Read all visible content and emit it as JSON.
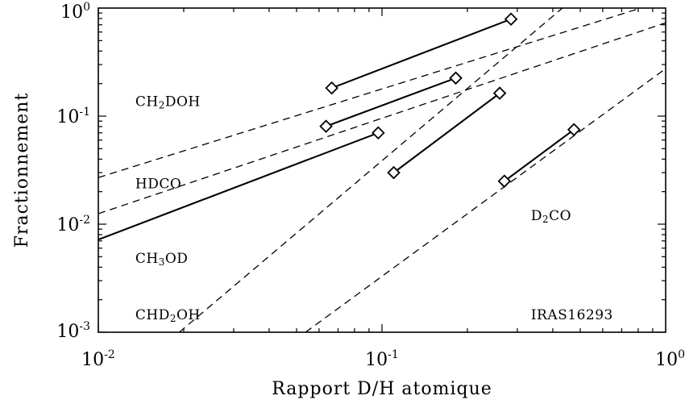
{
  "chart_data": {
    "type": "line",
    "title": "",
    "xlabel": "Rapport D/H atomique",
    "ylabel": "Fractionnement",
    "xscale": "log",
    "yscale": "log",
    "xlim": [
      0.01,
      1.0
    ],
    "ylim": [
      0.001,
      1.0
    ],
    "grid": false,
    "x_ticks": [
      {
        "value": 0.01,
        "base": "10",
        "exp": "-2"
      },
      {
        "value": 0.1,
        "base": "10",
        "exp": "-1"
      },
      {
        "value": 1.0,
        "base": "10",
        "exp": "0"
      }
    ],
    "y_ticks": [
      {
        "value": 0.001,
        "base": "10",
        "exp": "-3"
      },
      {
        "value": 0.01,
        "base": "10",
        "exp": "-2"
      },
      {
        "value": 0.1,
        "base": "10",
        "exp": "-1"
      },
      {
        "value": 1.0,
        "base": "10",
        "exp": "0"
      }
    ],
    "series": [
      {
        "style": "dashed",
        "x": [
          0.01,
          1.0
        ],
        "y": [
          0.027,
          1.18
        ]
      },
      {
        "style": "dashed",
        "x": [
          0.01,
          1.0
        ],
        "y": [
          0.0125,
          0.73
        ]
      },
      {
        "style": "dashed",
        "x": [
          0.0193,
          0.5
        ],
        "y": [
          0.001,
          1.38
        ]
      },
      {
        "style": "dashed",
        "x": [
          0.0538,
          1.0
        ],
        "y": [
          0.001,
          0.275
        ]
      },
      {
        "style": "solid",
        "markers": false,
        "x": [
          0.01,
          0.097
        ],
        "y": [
          0.0072,
          0.07
        ]
      },
      {
        "style": "solid",
        "markers": true,
        "x": [
          0.0665,
          0.285
        ],
        "y": [
          0.182,
          0.79
        ]
      },
      {
        "style": "solid",
        "markers": true,
        "x": [
          0.0635,
          0.182
        ],
        "y": [
          0.0805,
          0.225
        ]
      },
      {
        "style": "solid",
        "markers": true,
        "x": [
          0.097
        ],
        "y": [
          0.07
        ]
      },
      {
        "style": "solid",
        "markers": true,
        "x": [
          0.11,
          0.26
        ],
        "y": [
          0.03,
          0.163
        ]
      },
      {
        "style": "solid",
        "markers": true,
        "x": [
          0.27,
          0.475
        ],
        "y": [
          0.025,
          0.075
        ]
      }
    ],
    "annotations": [
      {
        "key": "ch2doh",
        "parts": [
          {
            "t": "CH"
          },
          {
            "t": "2",
            "sub": true
          },
          {
            "t": "DOH"
          }
        ],
        "x": 0.0135,
        "y": 0.124
      },
      {
        "key": "hdco",
        "parts": [
          {
            "t": "HDCO"
          }
        ],
        "x": 0.0135,
        "y": 0.0215
      },
      {
        "key": "ch3od",
        "parts": [
          {
            "t": "CH"
          },
          {
            "t": "3",
            "sub": true
          },
          {
            "t": "OD"
          }
        ],
        "x": 0.0135,
        "y": 0.0044
      },
      {
        "key": "chd2oh",
        "parts": [
          {
            "t": "CHD"
          },
          {
            "t": "2",
            "sub": true
          },
          {
            "t": "OH"
          }
        ],
        "x": 0.0135,
        "y": 0.00132
      },
      {
        "key": "d2co",
        "parts": [
          {
            "t": "D"
          },
          {
            "t": "2",
            "sub": true
          },
          {
            "t": "CO"
          }
        ],
        "x": 0.335,
        "y": 0.0109
      },
      {
        "key": "iras",
        "parts": [
          {
            "t": "IRAS16293"
          }
        ],
        "x": 0.335,
        "y": 0.00132
      }
    ]
  }
}
